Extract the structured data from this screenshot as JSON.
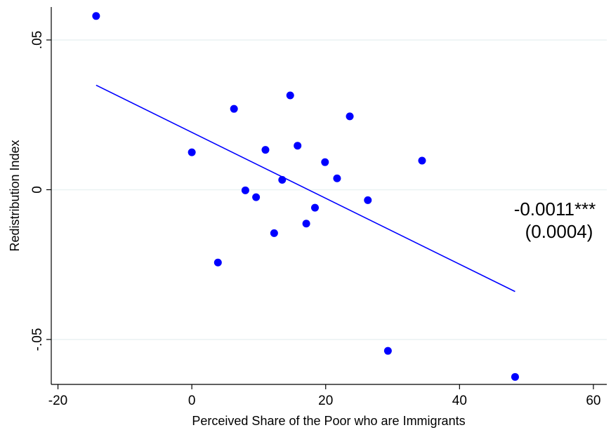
{
  "chart_data": {
    "type": "scatter",
    "xlabel": "Perceived Share of the Poor who are Immigrants",
    "ylabel": "Redistribution Index",
    "xlim": [
      -21,
      62
    ],
    "ylim": [
      -0.065,
      0.061
    ],
    "xticks": [
      -20,
      0,
      20,
      40,
      60
    ],
    "xtick_labels": [
      "-20",
      "0",
      "20",
      "40",
      "60"
    ],
    "yticks": [
      -0.05,
      0,
      0.05
    ],
    "ytick_labels": [
      "-.05",
      "0",
      ".05"
    ],
    "grid": "horizontal",
    "points": [
      {
        "x": -14.3,
        "y": 0.058
      },
      {
        "x": 6.3,
        "y": 0.027
      },
      {
        "x": 14.7,
        "y": 0.0315
      },
      {
        "x": 23.6,
        "y": 0.0245
      },
      {
        "x": 0.0,
        "y": 0.0125
      },
      {
        "x": 11.0,
        "y": 0.0133
      },
      {
        "x": 15.8,
        "y": 0.0147
      },
      {
        "x": 19.9,
        "y": 0.0092
      },
      {
        "x": 34.4,
        "y": 0.0097
      },
      {
        "x": 21.7,
        "y": 0.0038
      },
      {
        "x": 13.5,
        "y": 0.0033
      },
      {
        "x": 8.0,
        "y": -0.0002
      },
      {
        "x": 9.6,
        "y": -0.0025
      },
      {
        "x": 26.3,
        "y": -0.0035
      },
      {
        "x": 18.4,
        "y": -0.006
      },
      {
        "x": 17.1,
        "y": -0.0113
      },
      {
        "x": 12.3,
        "y": -0.0145
      },
      {
        "x": 3.9,
        "y": -0.0243
      },
      {
        "x": 29.3,
        "y": -0.0538
      },
      {
        "x": 48.3,
        "y": -0.0625
      }
    ],
    "fit_line": {
      "x": [
        -14.3,
        48.3
      ],
      "y": [
        0.0349,
        -0.034
      ]
    },
    "annotation": {
      "coefficient": "-0.0011***",
      "std_error": "(0.0004)"
    },
    "colors": {
      "marker": "#0000ff",
      "fit_line": "#0000ff",
      "grid": "#eaf2f3",
      "axis": "#000000"
    }
  }
}
